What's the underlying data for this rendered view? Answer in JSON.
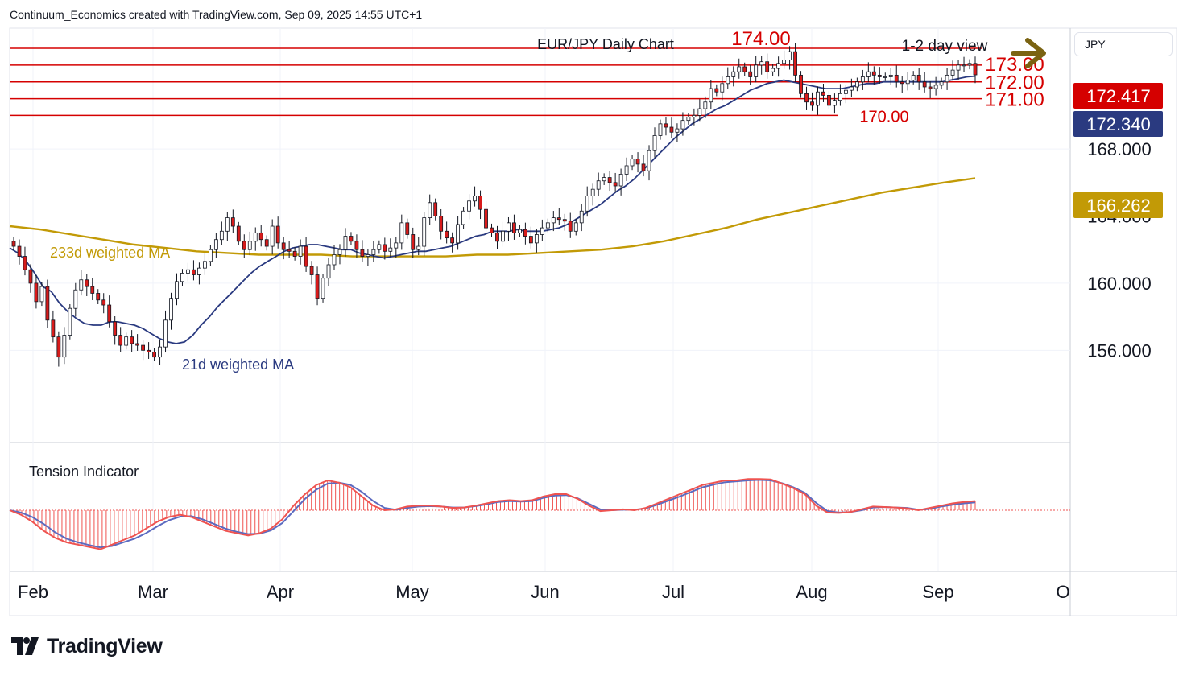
{
  "header": {
    "attribution": "Continuum_Economics created with TradingView.com, Sep 09, 2025 14:55 UTC+1"
  },
  "symbol": "JPY",
  "brand": {
    "name": "TradingView"
  },
  "colors": {
    "up": "#ffffff",
    "down": "#d81b1b",
    "wick": "#131722",
    "ma21": "#2a3a80",
    "ma233": "#c29a06",
    "level": "#d50000",
    "tension_fast": "#ef5350",
    "tension_slow": "#5c6bc0",
    "arrow": "#7a6312",
    "grid": "#f0f3fa"
  },
  "chart_data": {
    "type": "candlestick",
    "title": "EUR/JPY Daily Chart",
    "annotation": "1-2 day view",
    "x_labels": [
      "Feb",
      "Mar",
      "Apr",
      "May",
      "Jun",
      "Jul",
      "Aug",
      "Sep",
      "O"
    ],
    "y_ticks": [
      "168.000",
      "164.000",
      "160.000",
      "156.000"
    ],
    "ylim": [
      150.5,
      175.2
    ],
    "levels": [
      {
        "value": 174.0,
        "label": "174.00"
      },
      {
        "value": 173.0,
        "label": "173.00"
      },
      {
        "value": 172.0,
        "label": "172.00"
      },
      {
        "value": 171.0,
        "label": "171.00"
      },
      {
        "value": 170.0,
        "label": "170.00"
      }
    ],
    "price_badges": [
      {
        "value": 172.417,
        "label": "172.417",
        "color": "#d50000"
      },
      {
        "value": 172.34,
        "label": "172.340",
        "color": "#2a3a80"
      },
      {
        "value": 166.262,
        "label": "166.262",
        "color": "#c29a06"
      }
    ],
    "ma_labels": {
      "ma233": "233d weighted MA",
      "ma21": "21d weighted MA"
    },
    "tension_label": "Tension Indicator",
    "closes": [
      162.2,
      161.6,
      160.8,
      160.0,
      158.9,
      159.8,
      157.8,
      156.8,
      155.6,
      156.9,
      158.5,
      159.6,
      160.2,
      159.8,
      159.4,
      159.0,
      158.7,
      157.7,
      156.9,
      156.3,
      156.8,
      156.4,
      156.3,
      156.0,
      155.9,
      155.6,
      156.2,
      157.8,
      159.1,
      160.1,
      160.6,
      160.8,
      160.5,
      160.9,
      161.3,
      162.0,
      162.6,
      163.1,
      163.9,
      163.4,
      162.5,
      162.0,
      162.5,
      163.0,
      162.6,
      162.2,
      163.4,
      162.4,
      162.0,
      161.9,
      161.6,
      162.2,
      161.0,
      160.5,
      159.1,
      160.3,
      161.1,
      161.7,
      162.0,
      162.8,
      162.5,
      162.0,
      161.6,
      161.7,
      162.0,
      162.3,
      161.9,
      162.1,
      162.4,
      163.6,
      162.9,
      162.0,
      162.2,
      163.9,
      164.8,
      164.0,
      163.1,
      162.7,
      162.4,
      163.5,
      164.3,
      164.9,
      165.2,
      164.4,
      163.3,
      163.0,
      162.5,
      163.1,
      163.6,
      163.0,
      163.2,
      162.8,
      162.4,
      162.9,
      163.3,
      163.6,
      163.9,
      163.8,
      163.7,
      163.1,
      163.6,
      164.3,
      165.2,
      165.6,
      166.1,
      166.3,
      166.0,
      165.8,
      166.5,
      167.0,
      167.4,
      167.1,
      166.7,
      167.9,
      168.8,
      169.5,
      169.3,
      169.0,
      169.2,
      169.7,
      169.9,
      170.0,
      170.4,
      170.8,
      171.6,
      171.4,
      171.9,
      172.3,
      172.6,
      172.9,
      172.6,
      172.3,
      173.0,
      173.2,
      172.6,
      172.8,
      173.1,
      173.3,
      173.8,
      172.4,
      171.3,
      170.8,
      170.6,
      171.4,
      171.2,
      170.6,
      170.9,
      171.3,
      171.5,
      171.7,
      172.0,
      172.3,
      172.6,
      172.4,
      172.3,
      172.3,
      172.4,
      172.0,
      171.9,
      172.1,
      172.4,
      172.0,
      171.7,
      171.6,
      171.8,
      172.0,
      172.4,
      172.7,
      173.0,
      173.0,
      173.1,
      172.417
    ],
    "ma21": [
      162.1,
      161.8,
      161.3,
      160.6,
      159.8,
      159.5,
      158.8,
      158.3,
      157.9,
      157.6,
      157.5,
      157.5,
      157.7,
      157.7,
      157.6,
      157.5,
      157.3,
      157.0,
      156.7,
      156.5,
      156.4,
      156.5,
      156.9,
      157.5,
      158.0,
      158.6,
      159.1,
      159.6,
      160.1,
      160.6,
      161.0,
      161.3,
      161.6,
      161.9,
      162.1,
      162.2,
      162.3,
      162.3,
      162.2,
      162.1,
      162.0,
      162.0,
      161.8,
      161.7,
      161.6,
      161.5,
      161.6,
      161.7,
      161.8,
      161.9,
      161.9,
      162.0,
      162.1,
      162.2,
      162.4,
      162.6,
      162.8,
      162.9,
      163.1,
      163.1,
      163.1,
      163.2,
      163.1,
      163.1,
      163.1,
      163.2,
      163.3,
      163.5,
      163.8,
      164.1,
      164.4,
      164.7,
      165.1,
      165.5,
      165.8,
      166.2,
      166.7,
      167.2,
      167.7,
      168.2,
      168.7,
      169.1,
      169.5,
      169.8,
      170.1,
      170.4,
      170.6,
      170.9,
      171.2,
      171.5,
      171.7,
      171.9,
      172.0,
      172.1,
      172.0,
      171.9,
      171.8,
      171.7,
      171.6,
      171.6,
      171.6,
      171.7,
      171.8,
      171.9,
      171.9,
      172.0,
      172.0,
      172.0,
      172.0,
      172.0,
      172.0,
      172.0,
      172.0,
      172.1,
      172.2,
      172.3,
      172.34
    ],
    "ma233": [
      163.4,
      163.2,
      162.9,
      162.6,
      162.3,
      162.1,
      161.9,
      161.8,
      161.7,
      161.7,
      161.7,
      161.6,
      161.6,
      161.6,
      161.6,
      161.7,
      161.7,
      161.8,
      161.9,
      162.0,
      162.2,
      162.5,
      162.9,
      163.3,
      163.8,
      164.2,
      164.6,
      165.0,
      165.4,
      165.7,
      166.0,
      166.262
    ],
    "tension_fast": [
      0.0,
      -1.0,
      -2.5,
      -4.5,
      -6.0,
      -7.0,
      -7.5,
      -8.0,
      -8.5,
      -7.5,
      -6.5,
      -5.5,
      -4.0,
      -2.5,
      -1.5,
      -1.0,
      -1.5,
      -2.5,
      -3.5,
      -4.5,
      -5.0,
      -5.5,
      -5.0,
      -4.0,
      -2.0,
      1.0,
      3.5,
      5.5,
      6.5,
      6.0,
      5.0,
      3.0,
      1.0,
      0.0,
      0.2,
      0.8,
      1.0,
      1.0,
      0.8,
      0.5,
      0.6,
      1.0,
      1.5,
      2.0,
      2.2,
      2.0,
      2.2,
      3.0,
      3.5,
      3.5,
      2.5,
      1.0,
      -0.2,
      0.0,
      0.2,
      0.0,
      0.5,
      1.5,
      2.5,
      3.5,
      4.5,
      5.5,
      6.0,
      6.5,
      6.5,
      6.8,
      6.8,
      6.7,
      5.8,
      4.8,
      3.5,
      1.0,
      -0.5,
      -0.6,
      -0.4,
      0.2,
      0.8,
      0.7,
      0.6,
      0.4,
      0.0,
      0.5,
      1.0,
      1.5,
      1.8,
      2.0
    ],
    "tension_slow": [
      0.0,
      -0.5,
      -1.5,
      -3.0,
      -4.8,
      -6.2,
      -7.0,
      -7.6,
      -8.1,
      -7.8,
      -7.0,
      -6.2,
      -5.0,
      -3.5,
      -2.2,
      -1.4,
      -1.3,
      -2.0,
      -3.0,
      -4.0,
      -4.7,
      -5.2,
      -5.1,
      -4.4,
      -2.8,
      -0.2,
      2.5,
      4.5,
      5.8,
      6.0,
      5.5,
      4.0,
      2.0,
      0.5,
      0.1,
      0.5,
      0.8,
      0.9,
      0.8,
      0.6,
      0.6,
      0.9,
      1.3,
      1.8,
      2.0,
      1.9,
      2.0,
      2.7,
      3.2,
      3.3,
      2.6,
      1.4,
      0.2,
      0.0,
      0.1,
      0.1,
      0.4,
      1.2,
      2.1,
      3.0,
      4.0,
      5.0,
      5.6,
      6.1,
      6.3,
      6.5,
      6.6,
      6.5,
      5.9,
      5.0,
      3.8,
      1.6,
      -0.2,
      -0.5,
      -0.4,
      0.0,
      0.6,
      0.7,
      0.6,
      0.5,
      0.1,
      0.3,
      0.8,
      1.2,
      1.5,
      1.7
    ]
  }
}
